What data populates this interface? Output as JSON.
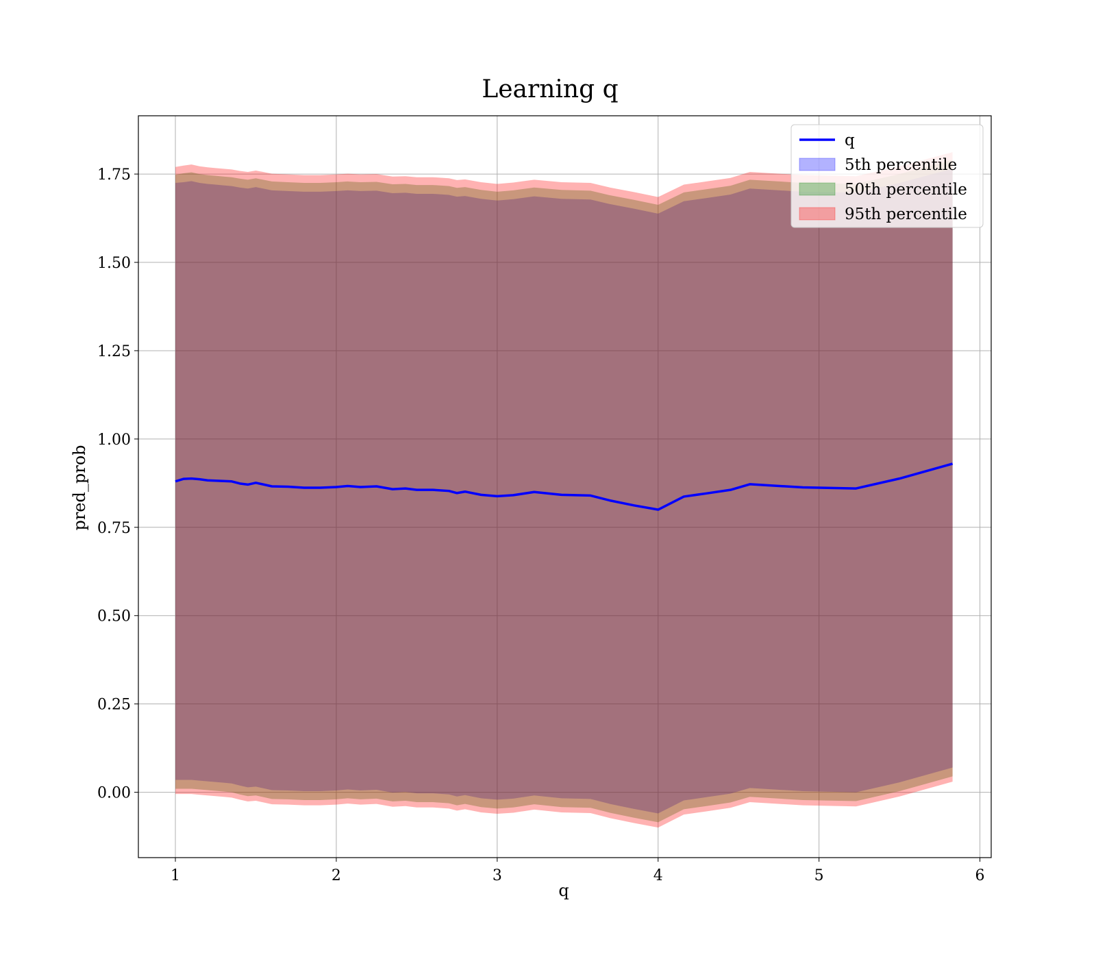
{
  "chart_data": {
    "type": "area",
    "title": "Learning q",
    "xlabel": "q",
    "ylabel": "pred_prob",
    "xlim": [
      0.77,
      6.07
    ],
    "ylim": [
      -0.185,
      1.915
    ],
    "xticks": [
      1,
      2,
      3,
      4,
      5,
      6
    ],
    "yticks": [
      0.0,
      0.25,
      0.5,
      0.75,
      1.0,
      1.25,
      1.5,
      1.75
    ],
    "ytick_labels": [
      "0.00",
      "0.25",
      "0.50",
      "0.75",
      "1.00",
      "1.25",
      "1.50",
      "1.75"
    ],
    "grid": true,
    "legend_position": "upper right",
    "legend": [
      {
        "label": "q",
        "kind": "line",
        "color": "#0000ff"
      },
      {
        "label": "5th percentile",
        "kind": "patch",
        "color": "#0000ff"
      },
      {
        "label": "50th percentile",
        "kind": "patch",
        "color": "#008000"
      },
      {
        "label": "95th percentile",
        "kind": "patch",
        "color": "#ff0000"
      }
    ],
    "x": [
      1.0,
      1.05,
      1.1,
      1.15,
      1.2,
      1.25,
      1.3,
      1.35,
      1.4,
      1.45,
      1.5,
      1.6,
      1.7,
      1.8,
      1.9,
      2.0,
      2.07,
      2.15,
      2.25,
      2.35,
      2.43,
      2.5,
      2.6,
      2.7,
      2.75,
      2.8,
      2.9,
      3.0,
      3.1,
      3.23,
      3.4,
      3.58,
      3.7,
      3.85,
      4.0,
      4.16,
      4.3,
      4.45,
      4.57,
      4.9,
      5.23,
      5.5,
      5.83
    ],
    "series": [
      {
        "name": "q",
        "values": [
          0.88,
          0.887,
          0.888,
          0.886,
          0.883,
          0.882,
          0.881,
          0.88,
          0.874,
          0.871,
          0.876,
          0.866,
          0.865,
          0.862,
          0.862,
          0.864,
          0.867,
          0.864,
          0.866,
          0.858,
          0.86,
          0.856,
          0.856,
          0.853,
          0.847,
          0.851,
          0.842,
          0.838,
          0.841,
          0.85,
          0.842,
          0.84,
          0.826,
          0.812,
          0.8,
          0.837,
          0.846,
          0.856,
          0.872,
          0.863,
          0.86,
          0.888,
          0.93
        ]
      },
      {
        "name": "5th percentile",
        "upper": [
          1.725,
          1.727,
          1.73,
          1.725,
          1.722,
          1.72,
          1.718,
          1.716,
          1.712,
          1.709,
          1.713,
          1.704,
          1.702,
          1.7,
          1.7,
          1.702,
          1.704,
          1.702,
          1.703,
          1.696,
          1.697,
          1.694,
          1.694,
          1.691,
          1.686,
          1.688,
          1.68,
          1.675,
          1.679,
          1.687,
          1.68,
          1.678,
          1.665,
          1.652,
          1.638,
          1.673,
          1.682,
          1.692,
          1.709,
          1.7,
          1.697,
          1.725,
          1.765
        ],
        "lower": [
          0.035,
          0.035,
          0.035,
          0.033,
          0.031,
          0.029,
          0.027,
          0.025,
          0.019,
          0.014,
          0.016,
          0.006,
          0.005,
          0.003,
          0.003,
          0.005,
          0.008,
          0.005,
          0.007,
          -0.001,
          0.001,
          -0.003,
          -0.003,
          -0.006,
          -0.012,
          -0.008,
          -0.017,
          -0.021,
          -0.018,
          -0.009,
          -0.017,
          -0.019,
          -0.033,
          -0.047,
          -0.06,
          -0.023,
          -0.014,
          -0.004,
          0.012,
          0.003,
          0.0,
          0.028,
          0.07
        ]
      },
      {
        "name": "50th percentile",
        "upper": [
          1.748,
          1.752,
          1.755,
          1.75,
          1.747,
          1.745,
          1.743,
          1.741,
          1.737,
          1.734,
          1.738,
          1.729,
          1.727,
          1.725,
          1.725,
          1.727,
          1.729,
          1.727,
          1.728,
          1.721,
          1.722,
          1.719,
          1.719,
          1.716,
          1.711,
          1.713,
          1.705,
          1.7,
          1.704,
          1.712,
          1.705,
          1.703,
          1.69,
          1.677,
          1.663,
          1.698,
          1.707,
          1.717,
          1.734,
          1.725,
          1.722,
          1.75,
          1.79
        ],
        "lower": [
          0.01,
          0.01,
          0.01,
          0.008,
          0.006,
          0.004,
          0.002,
          0.0,
          -0.006,
          -0.011,
          -0.009,
          -0.019,
          -0.02,
          -0.022,
          -0.022,
          -0.02,
          -0.017,
          -0.02,
          -0.018,
          -0.026,
          -0.024,
          -0.028,
          -0.028,
          -0.031,
          -0.037,
          -0.033,
          -0.042,
          -0.046,
          -0.043,
          -0.034,
          -0.042,
          -0.044,
          -0.058,
          -0.072,
          -0.085,
          -0.048,
          -0.039,
          -0.029,
          -0.013,
          -0.022,
          -0.025,
          0.003,
          0.045
        ]
      },
      {
        "name": "95th percentile",
        "upper": [
          1.77,
          1.774,
          1.777,
          1.772,
          1.769,
          1.767,
          1.765,
          1.763,
          1.759,
          1.756,
          1.76,
          1.751,
          1.749,
          1.747,
          1.747,
          1.749,
          1.751,
          1.749,
          1.75,
          1.743,
          1.744,
          1.741,
          1.741,
          1.738,
          1.733,
          1.735,
          1.727,
          1.722,
          1.726,
          1.734,
          1.727,
          1.725,
          1.712,
          1.699,
          1.685,
          1.72,
          1.729,
          1.739,
          1.756,
          1.747,
          1.744,
          1.772,
          1.812
        ],
        "lower": [
          -0.005,
          -0.005,
          -0.005,
          -0.007,
          -0.009,
          -0.011,
          -0.013,
          -0.015,
          -0.021,
          -0.026,
          -0.024,
          -0.034,
          -0.035,
          -0.037,
          -0.037,
          -0.035,
          -0.032,
          -0.035,
          -0.033,
          -0.041,
          -0.039,
          -0.043,
          -0.043,
          -0.046,
          -0.052,
          -0.048,
          -0.057,
          -0.061,
          -0.058,
          -0.049,
          -0.057,
          -0.059,
          -0.073,
          -0.087,
          -0.1,
          -0.063,
          -0.054,
          -0.044,
          -0.028,
          -0.037,
          -0.04,
          -0.012,
          0.03
        ]
      }
    ]
  }
}
